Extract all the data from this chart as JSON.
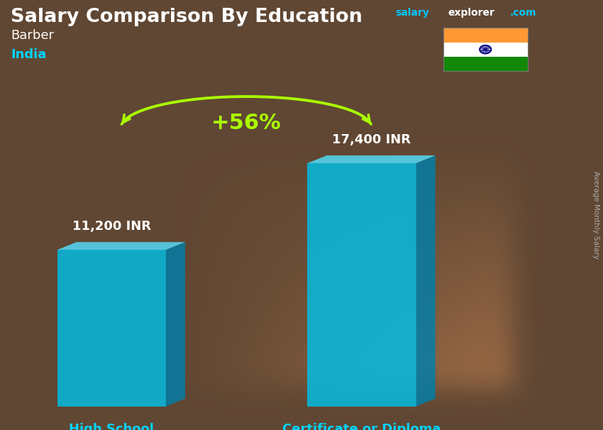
{
  "title": "Salary Comparison By Education",
  "subtitle_job": "Barber",
  "subtitle_country": "India",
  "site_salary": "salary",
  "site_explorer": "explorer",
  "site_com": ".com",
  "ylabel": "Average Monthly Salary",
  "categories": [
    "High School",
    "Certificate or Diploma"
  ],
  "values": [
    11200,
    17400
  ],
  "value_labels": [
    "11,200 INR",
    "17,400 INR"
  ],
  "pct_change": "+56%",
  "bar_color_face": "#00C0E8",
  "bar_color_side": "#007FAA",
  "bar_color_top": "#55D8F5",
  "bar_alpha": 0.82,
  "bg_base_color": [
    80,
    65,
    55
  ],
  "title_color": "#ffffff",
  "subtitle_job_color": "#ffffff",
  "subtitle_country_color": "#00D4FF",
  "category_label_color": "#00D4FF",
  "value_label_color": "#ffffff",
  "pct_color": "#AAFF00",
  "arrow_color": "#AAFF00",
  "site_color_salary": "#00C8FF",
  "site_color_explorer": "#ffffff",
  "site_color_com": "#00C8FF",
  "ylabel_color": "#aaaaaa",
  "flag_orange": "#FF9933",
  "flag_white": "#FFFFFF",
  "flag_green": "#138808",
  "flag_chakra": "#000080"
}
